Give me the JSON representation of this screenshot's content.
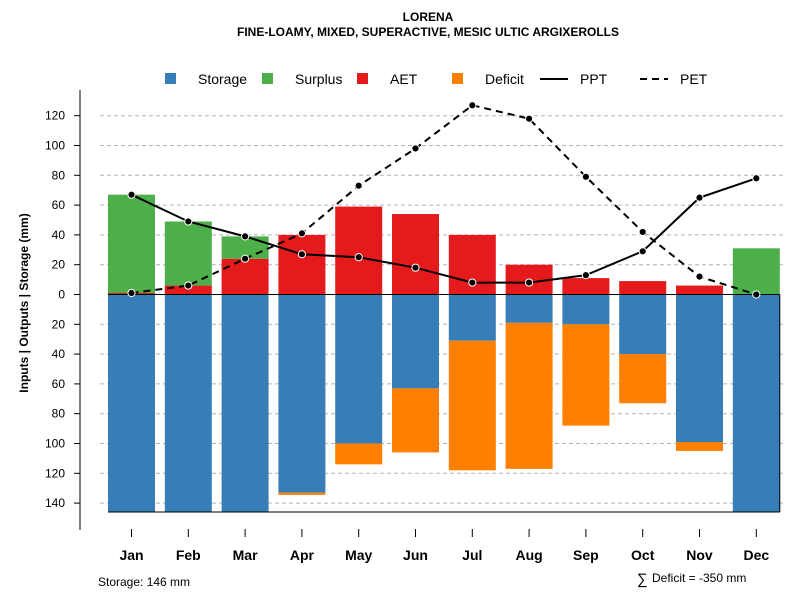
{
  "chart_data": {
    "type": "bar",
    "title": "LORENA",
    "subtitle": "FINE-LOAMY, MIXED, SUPERACTIVE, MESIC ULTIC ARGIXEROLLS",
    "ylabel": "Inputs | Outputs | Storage    (mm)",
    "categories": [
      "Jan",
      "Feb",
      "Mar",
      "Apr",
      "May",
      "Jun",
      "Jul",
      "Aug",
      "Sep",
      "Oct",
      "Nov",
      "Dec"
    ],
    "ylim": [
      -155,
      135
    ],
    "y_ticks": [
      {
        "value": 120,
        "label": "120"
      },
      {
        "value": 100,
        "label": "100"
      },
      {
        "value": 80,
        "label": "80"
      },
      {
        "value": 60,
        "label": "60"
      },
      {
        "value": 40,
        "label": "40"
      },
      {
        "value": 20,
        "label": "20"
      },
      {
        "value": 0,
        "label": "0"
      },
      {
        "value": -20,
        "label": "20"
      },
      {
        "value": -40,
        "label": "40"
      },
      {
        "value": -60,
        "label": "60"
      },
      {
        "value": -80,
        "label": "80"
      },
      {
        "value": -100,
        "label": "100"
      },
      {
        "value": -120,
        "label": "120"
      },
      {
        "value": -140,
        "label": "140"
      }
    ],
    "colors": {
      "storage": "#377EB8",
      "surplus": "#4DAF4A",
      "aet": "#E41A1C",
      "deficit": "#FF7F00"
    },
    "series": [
      {
        "name": "AET",
        "values": [
          1,
          6,
          24,
          40,
          59,
          54,
          40,
          20,
          11,
          9,
          6,
          0
        ]
      },
      {
        "name": "Surplus",
        "values": [
          66,
          43,
          15,
          0,
          0,
          0,
          0,
          0,
          0,
          0,
          0,
          31
        ]
      },
      {
        "name": "Storage",
        "values": [
          146,
          146,
          146,
          133,
          100,
          63,
          31,
          19,
          20,
          40,
          99,
          146
        ]
      },
      {
        "name": "Deficit",
        "values": [
          0,
          0,
          0,
          1.5,
          14,
          43,
          87,
          98,
          68,
          33,
          6,
          0
        ]
      },
      {
        "name": "PPT",
        "values": [
          67,
          49,
          39,
          27,
          25,
          18,
          8,
          8,
          13,
          29,
          65,
          78
        ]
      },
      {
        "name": "PET",
        "values": [
          1,
          6,
          24,
          41,
          73,
          98,
          127,
          118,
          79,
          42,
          12,
          0
        ]
      }
    ],
    "legend": {
      "position": "top",
      "items": [
        {
          "label": "Storage",
          "kind": "box",
          "color": "#377EB8"
        },
        {
          "label": "Surplus",
          "kind": "box",
          "color": "#4DAF4A"
        },
        {
          "label": "AET",
          "kind": "box",
          "color": "#E41A1C"
        },
        {
          "label": "Deficit",
          "kind": "box",
          "color": "#FF7F00"
        },
        {
          "label": "PPT",
          "kind": "solid"
        },
        {
          "label": "PET",
          "kind": "dashed"
        }
      ]
    },
    "annotations": {
      "storage_note": "Storage: 146 mm",
      "deficit_symbol": "∑",
      "deficit_note": "Deficit = -350 mm"
    }
  }
}
